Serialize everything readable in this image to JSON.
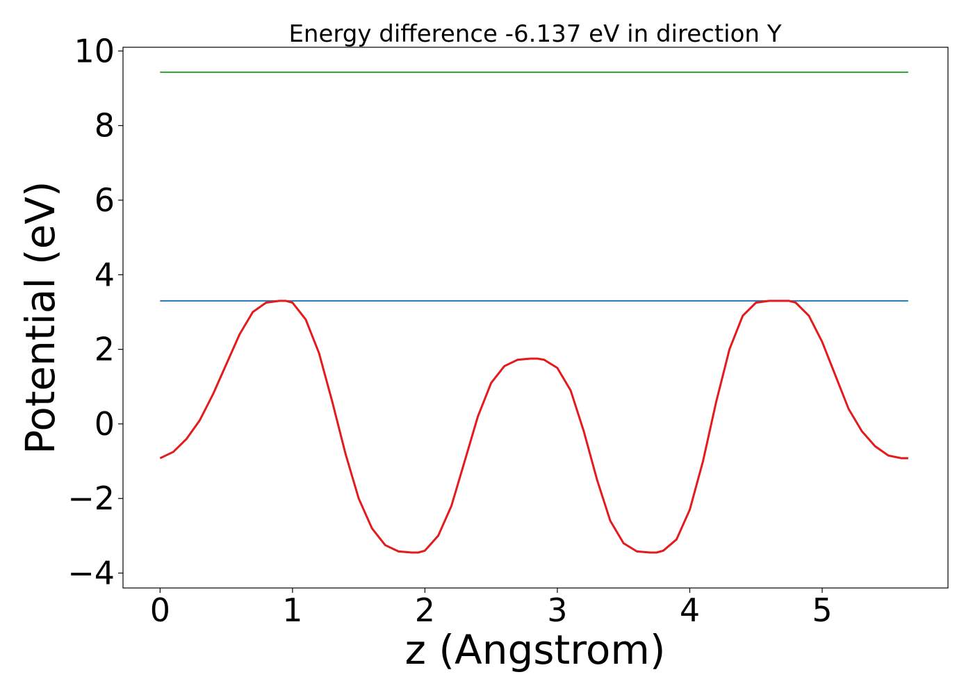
{
  "chart_data": {
    "type": "line",
    "title": "Energy difference -6.137 eV in direction Y",
    "xlabel": "z (Angstrom)",
    "ylabel": "Potential (eV)",
    "xlim": [
      -0.28,
      5.95
    ],
    "ylim": [
      -4.4,
      10.1
    ],
    "xticks": [
      0,
      1,
      2,
      3,
      4,
      5
    ],
    "xtick_labels": [
      "0",
      "1",
      "2",
      "3",
      "4",
      "5"
    ],
    "yticks": [
      -4,
      -2,
      0,
      2,
      4,
      6,
      8,
      10
    ],
    "ytick_labels": [
      "−4",
      "−2",
      "0",
      "2",
      "4",
      "6",
      "8",
      "10"
    ],
    "grid": false,
    "series": [
      {
        "color": "#2ca02c",
        "x": [
          0,
          5.65
        ],
        "y": [
          9.43,
          9.43
        ]
      },
      {
        "color": "#1f77b4",
        "x": [
          0,
          5.65
        ],
        "y": [
          3.3,
          3.3
        ]
      },
      {
        "color": "#e41a1c",
        "x": [
          0.0,
          0.1,
          0.2,
          0.3,
          0.4,
          0.5,
          0.6,
          0.7,
          0.8,
          0.9,
          0.95,
          1.0,
          1.1,
          1.2,
          1.3,
          1.4,
          1.5,
          1.6,
          1.7,
          1.8,
          1.9,
          1.95,
          2.0,
          2.1,
          2.2,
          2.3,
          2.4,
          2.5,
          2.6,
          2.7,
          2.8,
          2.85,
          2.9,
          3.0,
          3.1,
          3.2,
          3.3,
          3.4,
          3.5,
          3.6,
          3.7,
          3.75,
          3.8,
          3.9,
          4.0,
          4.1,
          4.2,
          4.3,
          4.4,
          4.5,
          4.6,
          4.7,
          4.75,
          4.8,
          4.9,
          5.0,
          5.1,
          5.2,
          5.3,
          5.4,
          5.5,
          5.6,
          5.65
        ],
        "y": [
          -0.92,
          -0.75,
          -0.4,
          0.1,
          0.8,
          1.6,
          2.4,
          3.0,
          3.25,
          3.3,
          3.3,
          3.25,
          2.8,
          1.9,
          0.6,
          -0.8,
          -2.0,
          -2.8,
          -3.25,
          -3.42,
          -3.45,
          -3.45,
          -3.4,
          -3.0,
          -2.2,
          -1.0,
          0.2,
          1.1,
          1.55,
          1.72,
          1.75,
          1.75,
          1.72,
          1.5,
          0.9,
          -0.2,
          -1.5,
          -2.6,
          -3.2,
          -3.42,
          -3.45,
          -3.45,
          -3.4,
          -3.1,
          -2.3,
          -1.0,
          0.6,
          2.0,
          2.9,
          3.25,
          3.3,
          3.3,
          3.3,
          3.25,
          2.9,
          2.2,
          1.3,
          0.4,
          -0.2,
          -0.6,
          -0.85,
          -0.92,
          -0.92
        ]
      }
    ]
  }
}
